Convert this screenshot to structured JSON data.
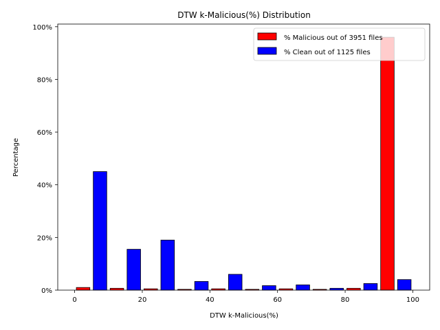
{
  "chart_data": {
    "type": "bar",
    "title": "DTW k-Malicious(%) Distribution",
    "xlabel": "DTW k-Malicious(%)",
    "ylabel": "Percentage",
    "xlim": [
      -5,
      105
    ],
    "ylim": [
      0,
      101
    ],
    "xticks": [
      0,
      20,
      40,
      60,
      80,
      100
    ],
    "xtick_labels": [
      "0",
      "20",
      "40",
      "60",
      "80",
      "100"
    ],
    "yticks": [
      0,
      20,
      40,
      60,
      80,
      100
    ],
    "ytick_labels": [
      "0%",
      "20%",
      "40%",
      "60%",
      "80%",
      "100%"
    ],
    "bin_edges": [
      0,
      10,
      20,
      30,
      40,
      50,
      60,
      70,
      80,
      90,
      100
    ],
    "series": [
      {
        "name": "% Malicious out of 3951 files",
        "color": "#ff0000",
        "values": [
          1.0,
          0.7,
          0.5,
          0.3,
          0.5,
          0.3,
          0.5,
          0.3,
          0.7,
          96.0
        ]
      },
      {
        "name": "% Clean out of 1125 files",
        "color": "#0000ff",
        "values": [
          45.0,
          15.5,
          19.0,
          3.3,
          6.0,
          1.7,
          2.0,
          0.7,
          2.5,
          4.0
        ]
      }
    ],
    "legend_position": "top-right",
    "grid": false
  }
}
